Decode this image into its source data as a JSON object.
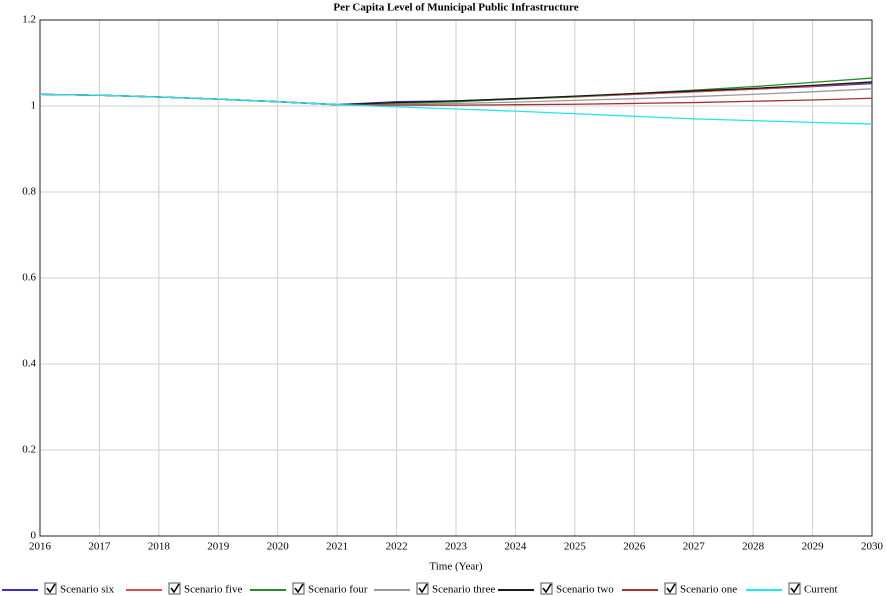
{
  "chart_data": {
    "type": "line",
    "title": "Per Capita Level of Municipal Public Infrastructure",
    "x_label": "Time (Year)",
    "x": [
      2016,
      2017,
      2018,
      2019,
      2020,
      2021,
      2022,
      2023,
      2024,
      2025,
      2026,
      2027,
      2028,
      2029,
      2030
    ],
    "xlim": [
      2016,
      2030
    ],
    "xticks": [
      2016,
      2017,
      2018,
      2019,
      2020,
      2021,
      2022,
      2023,
      2024,
      2025,
      2026,
      2027,
      2028,
      2029,
      2030
    ],
    "ylim": [
      0,
      1.2
    ],
    "yticks": [
      0,
      0.2,
      0.4,
      0.6,
      0.8,
      1,
      1.2
    ],
    "grid": true,
    "series": [
      {
        "name": "Scenario six",
        "color": "#3b2fd0",
        "values": [
          1.027,
          1.025,
          1.021,
          1.016,
          1.01,
          1.003,
          1.01,
          1.012,
          1.017,
          1.022,
          1.027,
          1.033,
          1.039,
          1.045,
          1.052
        ]
      },
      {
        "name": "Scenario five",
        "color": "#e04a4a",
        "values": [
          1.027,
          1.025,
          1.021,
          1.016,
          1.01,
          1.003,
          1.008,
          1.011,
          1.016,
          1.021,
          1.027,
          1.033,
          1.039,
          1.046,
          1.055
        ]
      },
      {
        "name": "Scenario four",
        "color": "#2a8a2a",
        "values": [
          1.027,
          1.025,
          1.021,
          1.016,
          1.01,
          1.003,
          1.006,
          1.01,
          1.016,
          1.022,
          1.029,
          1.037,
          1.045,
          1.055,
          1.065
        ]
      },
      {
        "name": "Scenario three",
        "color": "#9a9a9a",
        "values": [
          1.027,
          1.025,
          1.021,
          1.016,
          1.01,
          1.003,
          1.004,
          1.006,
          1.009,
          1.013,
          1.017,
          1.022,
          1.027,
          1.033,
          1.04
        ]
      },
      {
        "name": "Scenario two",
        "color": "#1a1a1a",
        "values": [
          1.027,
          1.025,
          1.021,
          1.016,
          1.01,
          1.003,
          1.008,
          1.012,
          1.017,
          1.023,
          1.029,
          1.035,
          1.041,
          1.048,
          1.056
        ]
      },
      {
        "name": "Scenario one",
        "color": "#a83232",
        "values": [
          1.027,
          1.025,
          1.021,
          1.016,
          1.01,
          1.003,
          1.002,
          1.002,
          1.003,
          1.004,
          1.006,
          1.008,
          1.011,
          1.014,
          1.018
        ]
      },
      {
        "name": "Current",
        "color": "#22e5ee",
        "values": [
          1.027,
          1.025,
          1.021,
          1.016,
          1.01,
          1.003,
          0.998,
          0.993,
          0.988,
          0.982,
          0.976,
          0.97,
          0.966,
          0.962,
          0.958
        ]
      }
    ]
  }
}
